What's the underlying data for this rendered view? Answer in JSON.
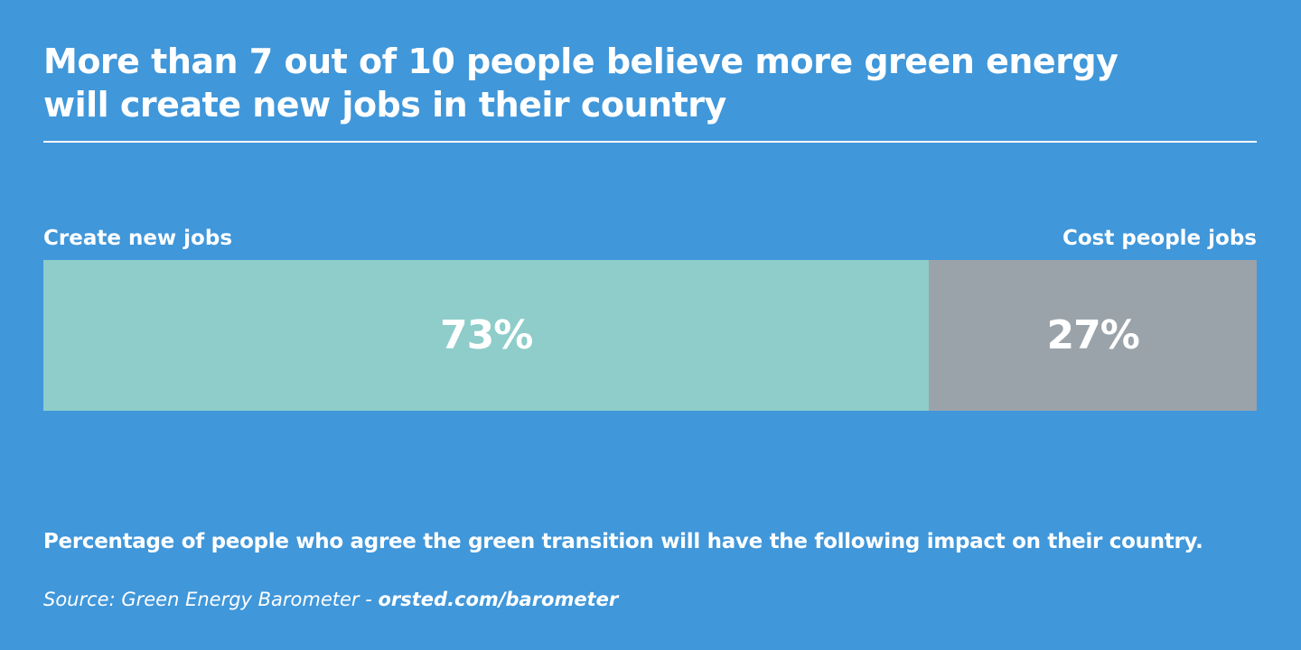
{
  "title": {
    "line1": "More than 7 out of 10 people believe more green energy",
    "line2": "will create new jobs in their country"
  },
  "labels": {
    "left": "Create new jobs",
    "right": "Cost people jobs"
  },
  "segments": [
    {
      "label": "Create new jobs",
      "value_text": "73%",
      "color": "#8ecdc9"
    },
    {
      "label": "Cost people jobs",
      "value_text": "27%",
      "color": "#9ba3aa"
    }
  ],
  "footnote": "Percentage of people who agree the green transition will have the following impact on their country.",
  "source": {
    "prefix": "Source: Green Energy Barometer - ",
    "link": "orsted.com/barometer"
  },
  "colors": {
    "background": "#4097da",
    "text": "#ffffff"
  },
  "chart_data": {
    "type": "bar",
    "orientation": "horizontal-stacked-100",
    "title": "More than 7 out of 10 people believe more green energy will create new jobs in their country",
    "categories": [
      "Create new jobs",
      "Cost people jobs"
    ],
    "values": [
      73,
      27
    ],
    "unit": "%",
    "colors": [
      "#8ecdc9",
      "#9ba3aa"
    ],
    "xlabel": "",
    "ylabel": "",
    "grid": false,
    "legend": "labels above bar ends",
    "caption": "Percentage of people who agree the green transition will have the following impact on their country.",
    "source": "Source: Green Energy Barometer - orsted.com/barometer"
  }
}
